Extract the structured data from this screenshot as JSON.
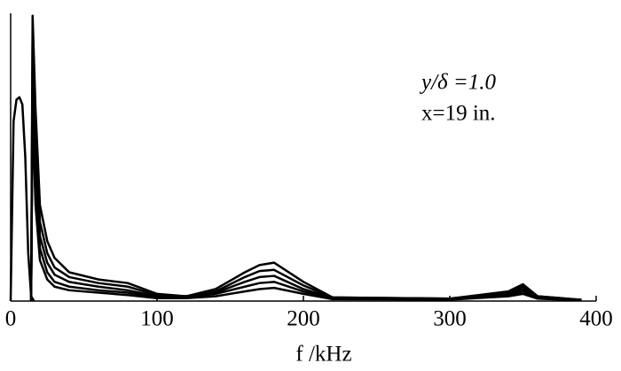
{
  "chart_data": {
    "type": "line",
    "xlabel": "f /kHz",
    "annotations": [
      "y/δ =1.0",
      "x=19 in."
    ],
    "xlim": [
      0,
      400
    ],
    "xticks": [
      0,
      100,
      200,
      300,
      400
    ],
    "ylim": [
      0,
      1.2
    ],
    "series": [
      {
        "color": "#000000",
        "x": [
          0,
          2,
          4,
          6,
          8,
          10,
          12,
          14,
          16
        ],
        "values": [
          0,
          0.75,
          0.84,
          0.85,
          0.82,
          0.6,
          0.2,
          0.02,
          0
        ]
      },
      {
        "color": "#000000",
        "x": [
          14,
          15,
          17,
          20,
          25,
          30,
          40,
          60,
          80,
          100,
          120,
          140,
          160,
          170,
          180,
          200,
          220,
          300,
          340,
          350,
          360,
          390
        ],
        "values": [
          0,
          1.19,
          0.8,
          0.4,
          0.25,
          0.18,
          0.12,
          0.09,
          0.075,
          0.03,
          0.02,
          0.05,
          0.12,
          0.15,
          0.16,
          0.08,
          0.015,
          0.01,
          0.04,
          0.07,
          0.02,
          0.005
        ]
      },
      {
        "color": "#000000",
        "x": [
          14,
          15,
          17,
          20,
          25,
          30,
          40,
          60,
          80,
          100,
          120,
          140,
          160,
          170,
          180,
          200,
          220,
          300,
          340,
          350,
          360,
          390
        ],
        "values": [
          0,
          1.1,
          0.7,
          0.33,
          0.2,
          0.14,
          0.1,
          0.075,
          0.06,
          0.025,
          0.02,
          0.04,
          0.1,
          0.125,
          0.13,
          0.065,
          0.015,
          0.01,
          0.035,
          0.06,
          0.02,
          0.005
        ]
      },
      {
        "color": "#000000",
        "x": [
          14,
          15,
          17,
          20,
          25,
          30,
          40,
          60,
          80,
          100,
          120,
          140,
          160,
          170,
          180,
          200,
          220,
          300,
          340,
          350,
          360,
          390
        ],
        "values": [
          0,
          1.0,
          0.6,
          0.27,
          0.16,
          0.11,
          0.08,
          0.06,
          0.045,
          0.02,
          0.02,
          0.035,
          0.08,
          0.1,
          0.105,
          0.05,
          0.012,
          0.01,
          0.03,
          0.05,
          0.015,
          0.005
        ]
      },
      {
        "color": "#000000",
        "x": [
          14,
          15,
          17,
          20,
          25,
          30,
          40,
          60,
          80,
          100,
          120,
          140,
          160,
          170,
          180,
          200,
          220,
          300,
          340,
          350,
          360,
          390
        ],
        "values": [
          0,
          0.9,
          0.5,
          0.22,
          0.12,
          0.08,
          0.06,
          0.045,
          0.035,
          0.015,
          0.015,
          0.03,
          0.06,
          0.075,
          0.08,
          0.04,
          0.01,
          0.008,
          0.025,
          0.04,
          0.012,
          0.004
        ]
      },
      {
        "color": "#000000",
        "x": [
          14,
          15,
          17,
          20,
          25,
          30,
          40,
          60,
          80,
          100,
          120,
          140,
          160,
          170,
          180,
          200,
          220,
          300,
          340,
          350,
          360,
          390
        ],
        "values": [
          0,
          0.8,
          0.4,
          0.17,
          0.09,
          0.06,
          0.045,
          0.035,
          0.025,
          0.012,
          0.012,
          0.02,
          0.04,
          0.05,
          0.055,
          0.03,
          0.008,
          0.006,
          0.02,
          0.03,
          0.01,
          0.003
        ]
      }
    ]
  }
}
